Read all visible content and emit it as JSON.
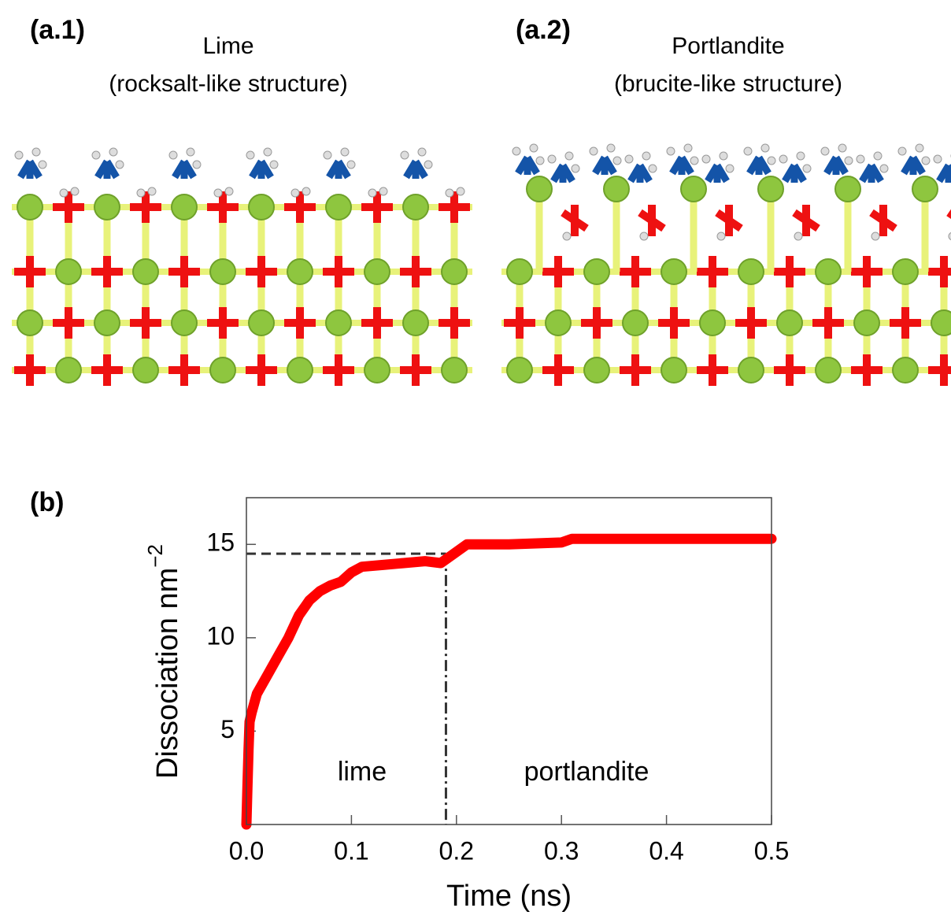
{
  "panels": {
    "a1": {
      "label": "(a.1)",
      "title": "Lime",
      "subtitle": "(rocksalt-like structure)"
    },
    "a2": {
      "label": "(a.2)",
      "title": "Portlandite",
      "subtitle": "(brucite-like structure)"
    },
    "b": {
      "label": "(b)"
    }
  },
  "chart_data": {
    "type": "line",
    "xlabel": "Time (ns)",
    "ylabel": "Dissociation nm",
    "ylabel_exponent": "−2",
    "xlim": [
      0,
      0.5
    ],
    "ylim": [
      0,
      17.5
    ],
    "xticks": [
      {
        "value": 0,
        "label": "0.0"
      },
      0.1,
      0.2,
      0.3,
      0.4,
      0.5
    ],
    "yticks": [
      5,
      10,
      15
    ],
    "series": [
      {
        "color": "#ff0000",
        "x": [
          0,
          0.001,
          0.002,
          0.003,
          0.005,
          0.01,
          0.02,
          0.03,
          0.04,
          0.05,
          0.06,
          0.07,
          0.08,
          0.09,
          0.1,
          0.11,
          0.13,
          0.15,
          0.17,
          0.185,
          0.19,
          0.2,
          0.21,
          0.25,
          0.3,
          0.31,
          0.35,
          0.4,
          0.45,
          0.5
        ],
        "values": [
          0,
          2,
          4,
          5.5,
          6,
          7,
          8,
          9,
          10,
          11.2,
          12,
          12.5,
          12.8,
          13,
          13.5,
          13.8,
          13.9,
          14.0,
          14.1,
          14.0,
          14.2,
          14.6,
          15.0,
          15.0,
          15.1,
          15.3,
          15.3,
          15.3,
          15.3,
          15.3
        ]
      }
    ],
    "reference_lines": {
      "x": 0.19,
      "y": 14.5
    },
    "annotations": [
      "lime",
      "portlandite"
    ]
  }
}
